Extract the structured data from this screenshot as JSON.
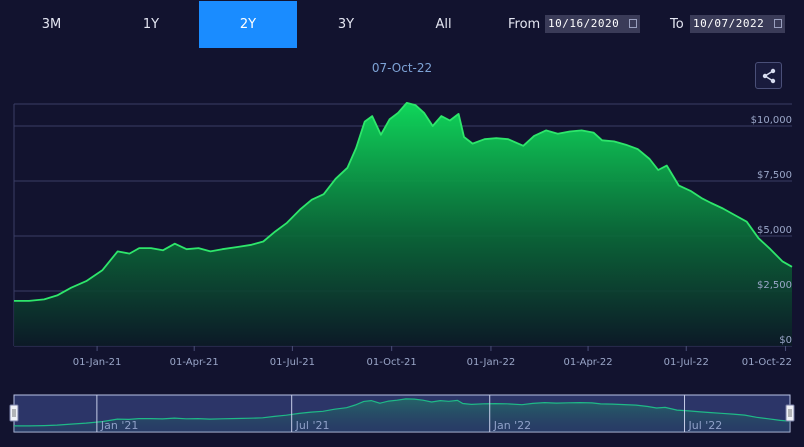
{
  "range_buttons": [
    {
      "label": "3M",
      "active": false
    },
    {
      "label": "1Y",
      "active": false
    },
    {
      "label": "2Y",
      "active": true
    },
    {
      "label": "3Y",
      "active": false
    },
    {
      "label": "All",
      "active": false
    }
  ],
  "date_range": {
    "from_label": "From",
    "from_value": "10/16/2020",
    "to_label": "To",
    "to_value": "10/07/2022"
  },
  "share_icon": "share-icon",
  "colors": {
    "background": "#12132f",
    "accent": "#1a8cff",
    "line": "#2ee66b",
    "fill_top": "#0fd65a",
    "fill_bottom": "#0c1a26"
  },
  "chart_data": {
    "type": "area",
    "title": "07-Oct-22",
    "ylabel": "",
    "ylim": [
      0,
      11000
    ],
    "y_ticks": [
      {
        "value": 0,
        "label": "$0"
      },
      {
        "value": 2500,
        "label": "$2,500"
      },
      {
        "value": 5000,
        "label": "$5,000"
      },
      {
        "value": 7500,
        "label": "$7,500"
      },
      {
        "value": 10000,
        "label": "$10,000"
      }
    ],
    "x_ticks": [
      {
        "date": "2021-01-01",
        "label": "01-Jan-21"
      },
      {
        "date": "2021-04-01",
        "label": "01-Apr-21"
      },
      {
        "date": "2021-07-01",
        "label": "01-Jul-21"
      },
      {
        "date": "2021-10-01",
        "label": "01-Oct-21"
      },
      {
        "date": "2022-01-01",
        "label": "01-Jan-22"
      },
      {
        "date": "2022-04-01",
        "label": "01-Apr-22"
      },
      {
        "date": "2022-07-01",
        "label": "01-Jul-22"
      },
      {
        "date": "2022-10-01",
        "label": "01-Oct-22"
      }
    ],
    "grid": true,
    "series": [
      {
        "values": [
          [
            "2020-10-16",
            2050
          ],
          [
            "2020-10-30",
            2050
          ],
          [
            "2020-11-13",
            2120
          ],
          [
            "2020-11-25",
            2300
          ],
          [
            "2020-12-08",
            2650
          ],
          [
            "2020-12-22",
            2950
          ],
          [
            "2021-01-06",
            3450
          ],
          [
            "2021-01-20",
            4300
          ],
          [
            "2021-01-31",
            4200
          ],
          [
            "2021-02-09",
            4450
          ],
          [
            "2021-02-20",
            4450
          ],
          [
            "2021-03-03",
            4350
          ],
          [
            "2021-03-14",
            4650
          ],
          [
            "2021-03-25",
            4400
          ],
          [
            "2021-04-05",
            4450
          ],
          [
            "2021-04-16",
            4300
          ],
          [
            "2021-04-27",
            4400
          ],
          [
            "2021-05-11",
            4500
          ],
          [
            "2021-05-24",
            4600
          ],
          [
            "2021-06-04",
            4750
          ],
          [
            "2021-06-15",
            5200
          ],
          [
            "2021-06-26",
            5600
          ],
          [
            "2021-07-08",
            6200
          ],
          [
            "2021-07-19",
            6650
          ],
          [
            "2021-07-30",
            6900
          ],
          [
            "2021-08-10",
            7600
          ],
          [
            "2021-08-21",
            8100
          ],
          [
            "2021-08-29",
            9000
          ],
          [
            "2021-09-06",
            10200
          ],
          [
            "2021-09-13",
            10450
          ],
          [
            "2021-09-21",
            9600
          ],
          [
            "2021-09-29",
            10300
          ],
          [
            "2021-10-07",
            10600
          ],
          [
            "2021-10-15",
            11050
          ],
          [
            "2021-10-23",
            10950
          ],
          [
            "2021-10-31",
            10600
          ],
          [
            "2021-11-08",
            10000
          ],
          [
            "2021-11-16",
            10450
          ],
          [
            "2021-11-24",
            10250
          ],
          [
            "2021-12-02",
            10550
          ],
          [
            "2021-12-07",
            9500
          ],
          [
            "2021-12-15",
            9200
          ],
          [
            "2021-12-26",
            9400
          ],
          [
            "2022-01-06",
            9450
          ],
          [
            "2022-01-17",
            9400
          ],
          [
            "2022-01-31",
            9100
          ],
          [
            "2022-02-10",
            9550
          ],
          [
            "2022-02-21",
            9800
          ],
          [
            "2022-03-04",
            9650
          ],
          [
            "2022-03-15",
            9750
          ],
          [
            "2022-03-26",
            9800
          ],
          [
            "2022-04-06",
            9700
          ],
          [
            "2022-04-14",
            9350
          ],
          [
            "2022-04-25",
            9300
          ],
          [
            "2022-05-06",
            9150
          ],
          [
            "2022-05-17",
            8950
          ],
          [
            "2022-05-28",
            8500
          ],
          [
            "2022-06-05",
            8000
          ],
          [
            "2022-06-13",
            8200
          ],
          [
            "2022-06-24",
            7300
          ],
          [
            "2022-07-05",
            7050
          ],
          [
            "2022-07-16",
            6700
          ],
          [
            "2022-07-24",
            6500
          ],
          [
            "2022-08-04",
            6250
          ],
          [
            "2022-08-15",
            5950
          ],
          [
            "2022-08-26",
            5650
          ],
          [
            "2022-09-06",
            4900
          ],
          [
            "2022-09-17",
            4400
          ],
          [
            "2022-09-28",
            3850
          ],
          [
            "2022-10-07",
            3600
          ]
        ]
      }
    ]
  },
  "navigator": {
    "x_ticks": [
      {
        "date": "2021-01-01",
        "label": "Jan '21"
      },
      {
        "date": "2021-07-01",
        "label": "Jul '21"
      },
      {
        "date": "2022-01-01",
        "label": "Jan '22"
      },
      {
        "date": "2022-07-01",
        "label": "Jul '22"
      }
    ]
  }
}
